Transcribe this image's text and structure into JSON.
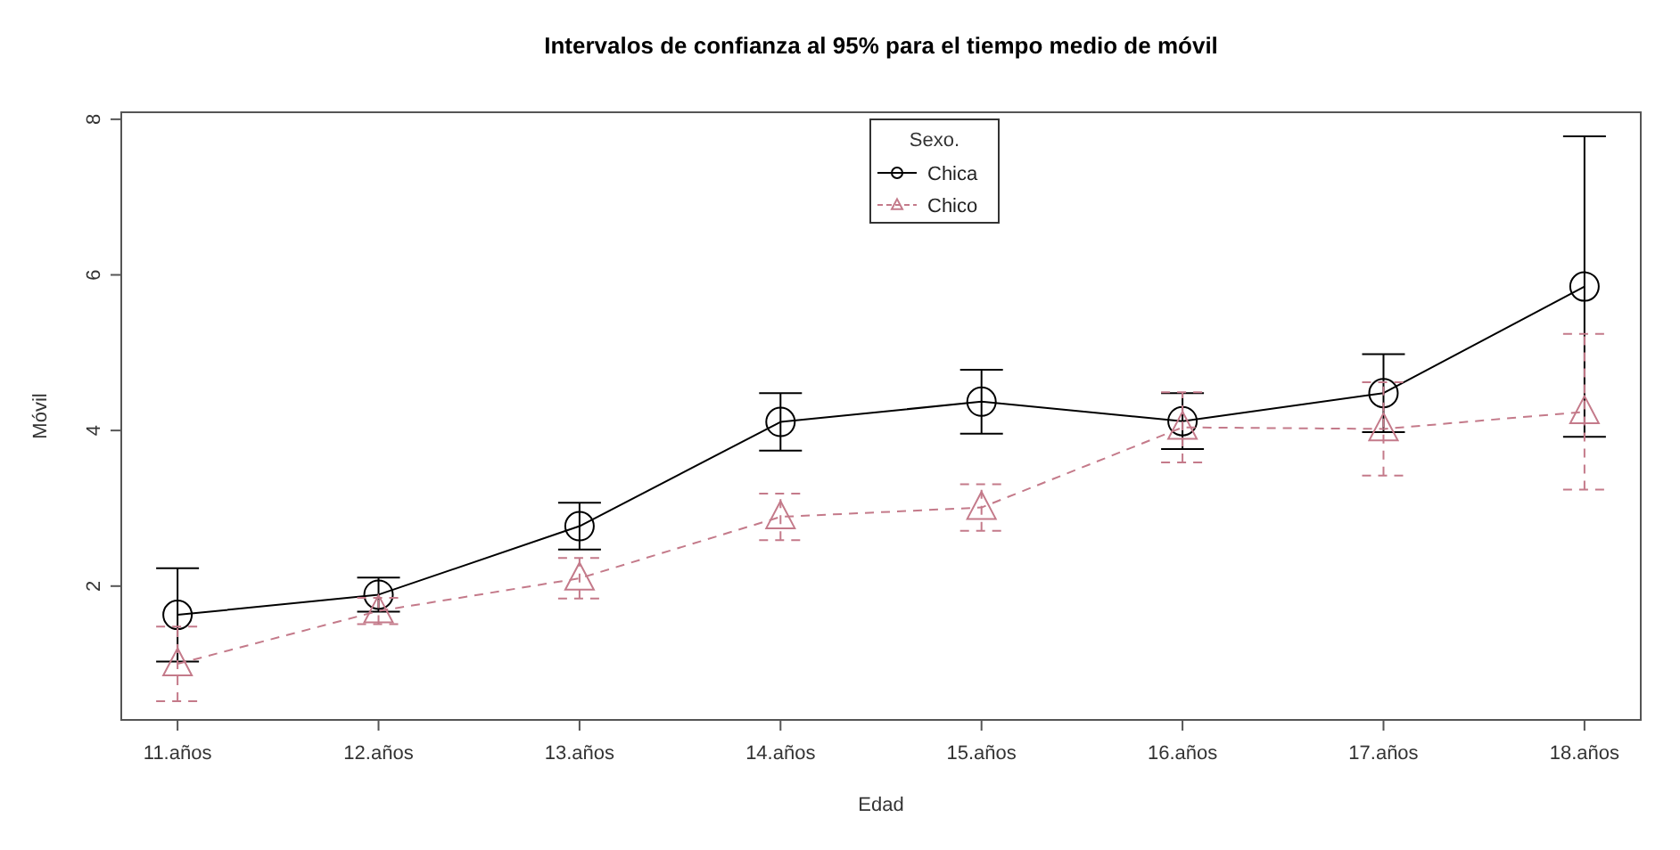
{
  "chart_data": {
    "type": "line",
    "title": "Intervalos de confianza al 95% para el tiempo medio de móvil",
    "xlabel": "Edad",
    "ylabel": "Móvil",
    "legend_title": "Sexo.",
    "legend": "top",
    "categories": [
      "11.años",
      "12.años",
      "13.años",
      "14.años",
      "15.años",
      "16.años",
      "17.años",
      "18.años"
    ],
    "ylim": [
      0.28,
      8.09
    ],
    "yticks": [
      2,
      4,
      6,
      8
    ],
    "series": [
      {
        "name": "Chica",
        "color": "#000000",
        "marker": "circle",
        "line_style": "solid",
        "values": [
          1.63,
          1.89,
          2.77,
          4.11,
          4.37,
          4.12,
          4.48,
          5.85
        ],
        "errors": [
          0.6,
          0.22,
          0.3,
          0.37,
          0.41,
          0.36,
          0.5,
          1.93
        ]
      },
      {
        "name": "Chico",
        "color": "#c47a8a",
        "marker": "triangle",
        "line_style": "dashed",
        "values": [
          1.0,
          1.68,
          2.1,
          2.89,
          3.01,
          4.04,
          4.02,
          4.24
        ],
        "errors": [
          0.48,
          0.17,
          0.26,
          0.3,
          0.3,
          0.45,
          0.6,
          1.0
        ]
      }
    ]
  }
}
